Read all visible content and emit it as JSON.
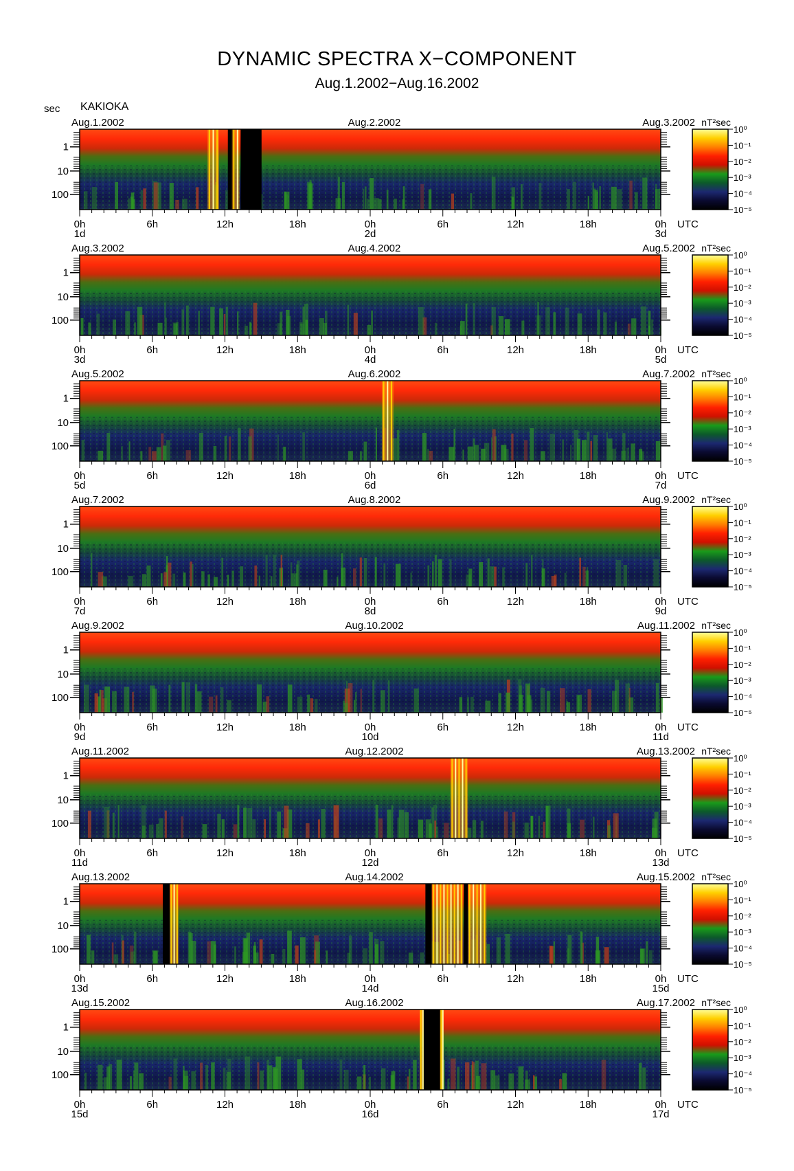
{
  "header": {
    "title": "DYNAMIC SPECTRA X−COMPONENT",
    "subtitle": "Aug.1.2002−Aug.16.2002",
    "y_unit": "sec",
    "station": "KAKIOKA"
  },
  "chart_data": {
    "type": "heatmap",
    "y_axis": {
      "scale": "log",
      "ticks": [
        "1",
        "10",
        "100"
      ],
      "direction": "period increases downward"
    },
    "x_axis": {
      "tick_labels": [
        "0h",
        "6h",
        "12h",
        "18h",
        "0h",
        "6h",
        "12h",
        "18h",
        "0h"
      ],
      "unit_label": "UTC"
    },
    "colorbar": {
      "unit_label": "nT²sec",
      "ticks": [
        "10⁰",
        "10⁻¹",
        "10⁻²",
        "10⁻³",
        "10⁻⁴",
        "10⁻⁵"
      ],
      "colors": [
        "#ffff99",
        "#ffd000",
        "#ff8000",
        "#ff2000",
        "#d01000",
        "#1a9a1a",
        "#0c5a2a",
        "#1c2870",
        "#0a0a30",
        "#000000"
      ]
    },
    "panels": [
      {
        "date_left": "Aug.1.2002",
        "date_mid": "Aug.2.2002",
        "date_right": "Aug.3.2002",
        "day_labels": [
          "1d",
          "2d",
          "3d"
        ],
        "gaps": [
          [
            0.255,
            0.265
          ],
          [
            0.277,
            0.313
          ]
        ],
        "bursts": [
          [
            0.22,
            0.24
          ],
          [
            0.262,
            0.275
          ]
        ]
      },
      {
        "date_left": "Aug.3.2002",
        "date_mid": "Aug.4.2002",
        "date_right": "Aug.5.2002",
        "day_labels": [
          "3d",
          "4d",
          "5d"
        ],
        "gaps": [],
        "bursts": []
      },
      {
        "date_left": "Aug.5.2002",
        "date_mid": "Aug.6.2002",
        "date_right": "Aug.7.2002",
        "day_labels": [
          "5d",
          "6d",
          "7d"
        ],
        "gaps": [],
        "bursts": [
          [
            0.52,
            0.54
          ]
        ]
      },
      {
        "date_left": "Aug.7.2002",
        "date_mid": "Aug.8.2002",
        "date_right": "Aug.9.2002",
        "day_labels": [
          "7d",
          "8d",
          "9d"
        ],
        "gaps": [],
        "bursts": []
      },
      {
        "date_left": "Aug.9.2002",
        "date_mid": "Aug.10.2002",
        "date_right": "Aug.11.2002",
        "day_labels": [
          "9d",
          "10d",
          "11d"
        ],
        "gaps": [],
        "bursts": []
      },
      {
        "date_left": "Aug.11.2002",
        "date_mid": "Aug.12.2002",
        "date_right": "Aug.13.2002",
        "day_labels": [
          "11d",
          "12d",
          "13d"
        ],
        "gaps": [],
        "bursts": [
          [
            0.638,
            0.668
          ]
        ]
      },
      {
        "date_left": "Aug.13.2002",
        "date_mid": "Aug.14.2002",
        "date_right": "Aug.15.2002",
        "day_labels": [
          "13d",
          "14d",
          "15d"
        ],
        "gaps": [
          [
            0.143,
            0.155
          ],
          [
            0.595,
            0.606
          ],
          [
            0.661,
            0.668
          ]
        ],
        "bursts": [
          [
            0.155,
            0.17
          ],
          [
            0.606,
            0.66
          ],
          [
            0.668,
            0.7
          ]
        ]
      },
      {
        "date_left": "Aug.15.2002",
        "date_mid": "Aug.16.2002",
        "date_right": "Aug.17.2002",
        "day_labels": [
          "15d",
          "16d",
          "17d"
        ],
        "gaps": [
          [
            0.591,
            0.622
          ]
        ],
        "bursts": [
          [
            0.585,
            0.592
          ],
          [
            0.62,
            0.626
          ]
        ]
      }
    ]
  }
}
